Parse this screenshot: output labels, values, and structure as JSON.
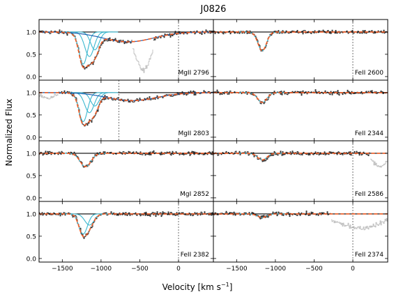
{
  "title": "J0826",
  "ylabel": "Normalized Flux",
  "xlabel": "Velocity [km s",
  "xlabel_sup": "−1",
  "xlabel_close": "]",
  "colors": {
    "data": "#111111",
    "masked": "#b8b8b8",
    "total_fit": "#f15a22",
    "component": "#3ab7cf",
    "outflow": "#1f5fb0",
    "continuum": "#000000"
  },
  "chart_data": {
    "type": "line",
    "title": "J0826",
    "xlabel": "Velocity [km s−1]",
    "ylabel": "Normalized Flux",
    "xlim": [
      -1800,
      450
    ],
    "ylim": [
      -0.08,
      1.28
    ],
    "xticks": [
      -1500,
      -1000,
      -500,
      0
    ],
    "xtick_labels": [
      "−1500",
      "−1000",
      "−500",
      "0"
    ],
    "yticks": [
      0.0,
      0.5,
      1.0
    ],
    "ytick_labels": [
      "0.0",
      "0.5",
      "1.0"
    ],
    "grid": false,
    "layout": "4 rows x 2 columns of panels sharing x and y axes",
    "panels": [
      {
        "label": "MgII 2796",
        "row": 0,
        "col": 0,
        "components": [
          -1230,
          -1150,
          -1080
        ],
        "depths": [
          0.72,
          0.55,
          0.4
        ],
        "widths": [
          55,
          60,
          55
        ],
        "broad": {
          "center": -650,
          "depth": 0.22,
          "width": 330
        },
        "masked": [
          -600,
          -330
        ],
        "masked_center": -460,
        "masked_depth": 0.85,
        "vline": 0
      },
      {
        "label": "MgII 2803",
        "row": 1,
        "col": 0,
        "components": [
          -1230,
          -1150,
          -1080
        ],
        "depths": [
          0.65,
          0.45,
          0.3
        ],
        "widths": [
          55,
          60,
          55
        ],
        "broad": {
          "center": -600,
          "depth": 0.18,
          "width": 320
        },
        "masked": [
          -1800,
          -1550
        ],
        "masked_center": -1700,
        "masked_depth": 0.1,
        "vline": -770
      },
      {
        "label": "MgI 2852",
        "row": 2,
        "col": 0,
        "components": [
          -1200
        ],
        "depths": [
          0.3
        ],
        "widths": [
          70
        ],
        "broad": null,
        "masked": null,
        "vline": null
      },
      {
        "label": "FeII 2382",
        "row": 3,
        "col": 0,
        "components": [
          -1230,
          -1150
        ],
        "depths": [
          0.45,
          0.25
        ],
        "widths": [
          55,
          60
        ],
        "broad": null,
        "masked": null,
        "vline": 0
      },
      {
        "label": "FeII 2600",
        "row": 0,
        "col": 1,
        "components": [
          -1170
        ],
        "depths": [
          0.42
        ],
        "widths": [
          55
        ],
        "broad": null,
        "masked": null,
        "vline": 0
      },
      {
        "label": "FeII 2344",
        "row": 1,
        "col": 1,
        "components": [
          -1170
        ],
        "depths": [
          0.22
        ],
        "widths": [
          60
        ],
        "broad": null,
        "masked": null,
        "vline": null
      },
      {
        "label": "FeII 2586",
        "row": 2,
        "col": 1,
        "components": [
          -1170
        ],
        "depths": [
          0.15
        ],
        "widths": [
          60
        ],
        "broad": null,
        "masked": [
          220,
          450
        ],
        "masked_center": 350,
        "masked_depth": 0.3,
        "vline": 0
      },
      {
        "label": "FeII 2374",
        "row": 3,
        "col": 1,
        "components": [
          -1170
        ],
        "depths": [
          0.08
        ],
        "widths": [
          60
        ],
        "broad": null,
        "masked": [
          -280,
          450
        ],
        "masked_center": 80,
        "masked_depth": 0.32,
        "vline": 0
      }
    ]
  }
}
